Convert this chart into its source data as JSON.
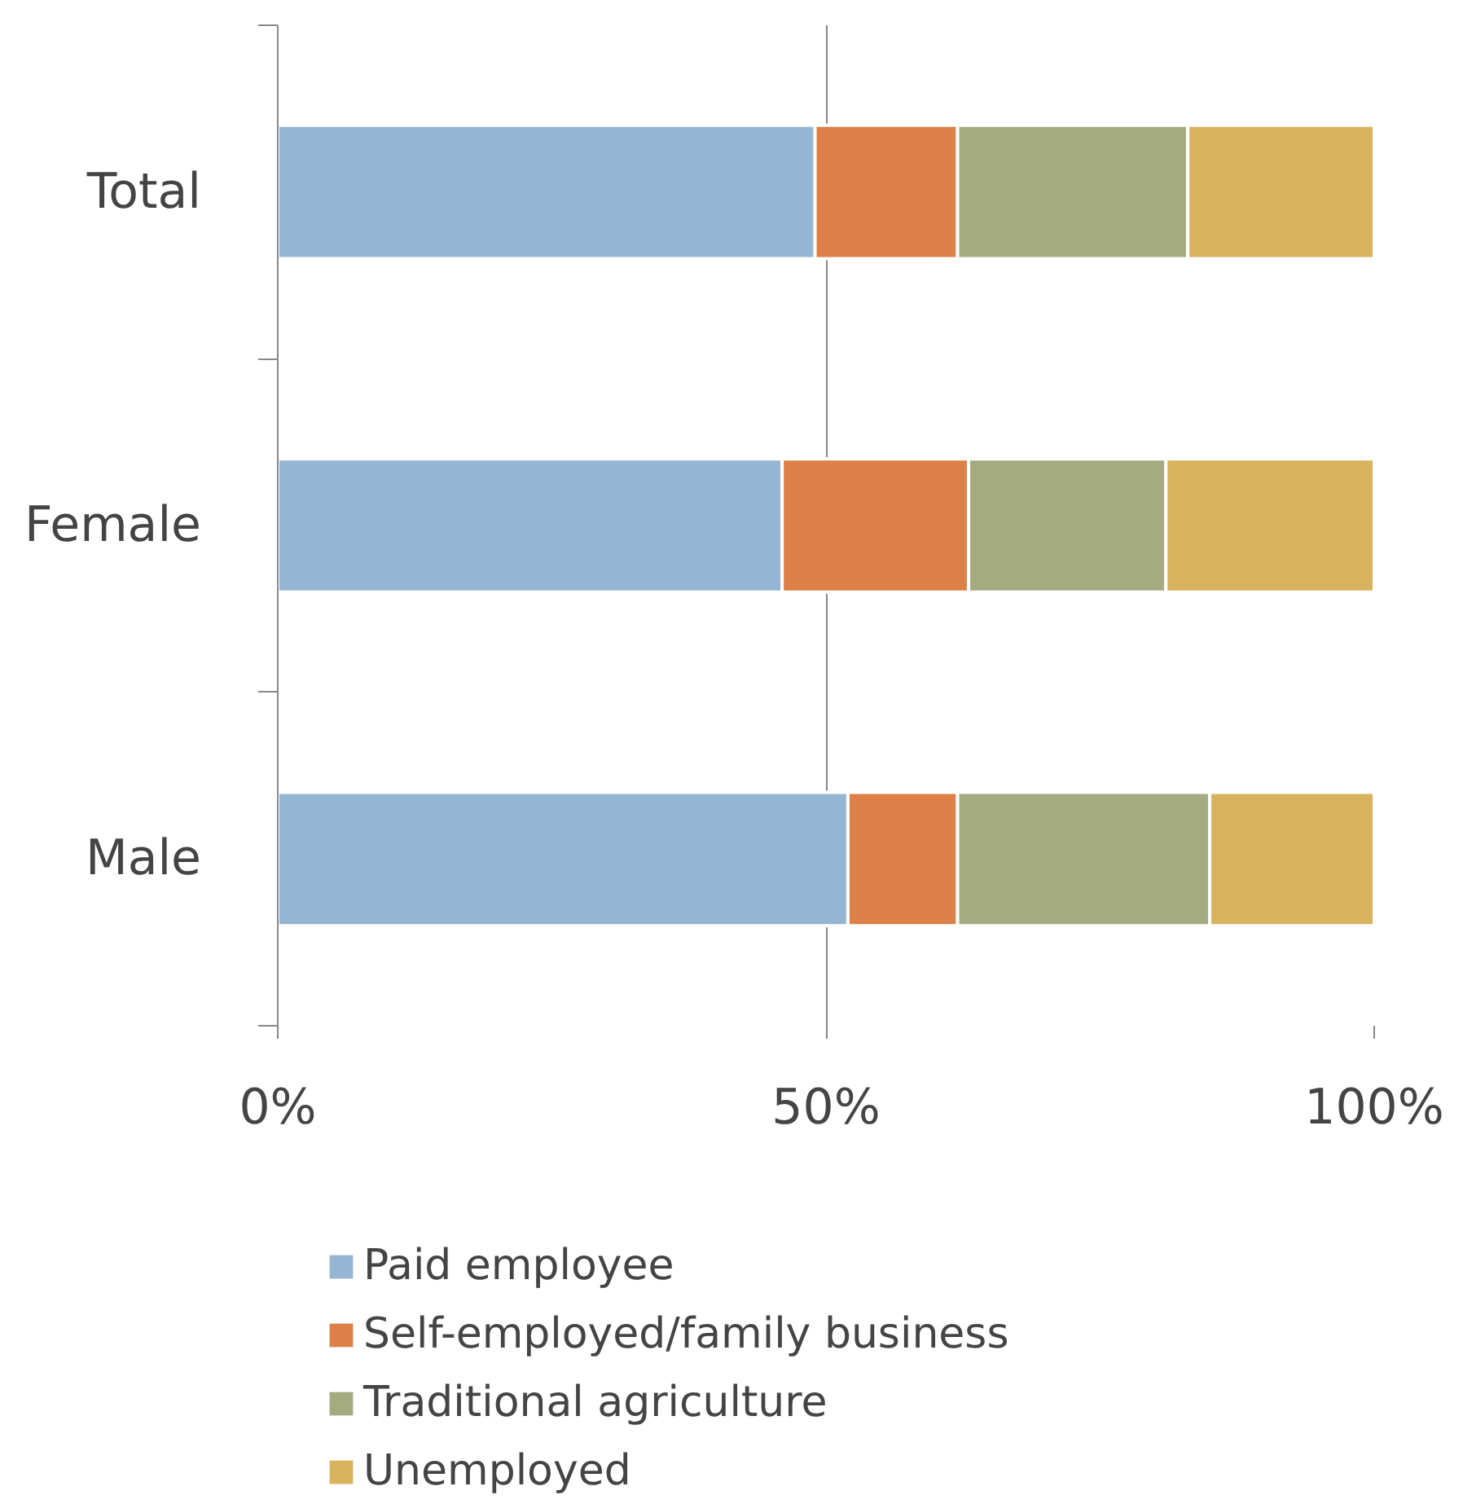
{
  "chart_data": {
    "type": "bar",
    "orientation": "horizontal",
    "stacked": true,
    "categories": [
      "Total",
      "Female",
      "Male"
    ],
    "series": [
      {
        "name": "Paid employee",
        "color": "#94b6d2",
        "values": [
          49,
          46,
          52
        ]
      },
      {
        "name": "Self-employed/family business",
        "color": "#dd8047",
        "values": [
          13,
          17,
          10
        ]
      },
      {
        "name": "Traditional agriculture",
        "color": "#a5ab81",
        "values": [
          21,
          18,
          23
        ]
      },
      {
        "name": "Unemployed",
        "color": "#d8b25c",
        "values": [
          17,
          19,
          15
        ]
      }
    ],
    "xlim": [
      0,
      100
    ],
    "xticks": [
      {
        "value": 0,
        "label": "0%"
      },
      {
        "value": 50,
        "label": "50%"
      },
      {
        "value": 100,
        "label": "100%"
      }
    ],
    "grid": "x",
    "legend": "bottom"
  }
}
